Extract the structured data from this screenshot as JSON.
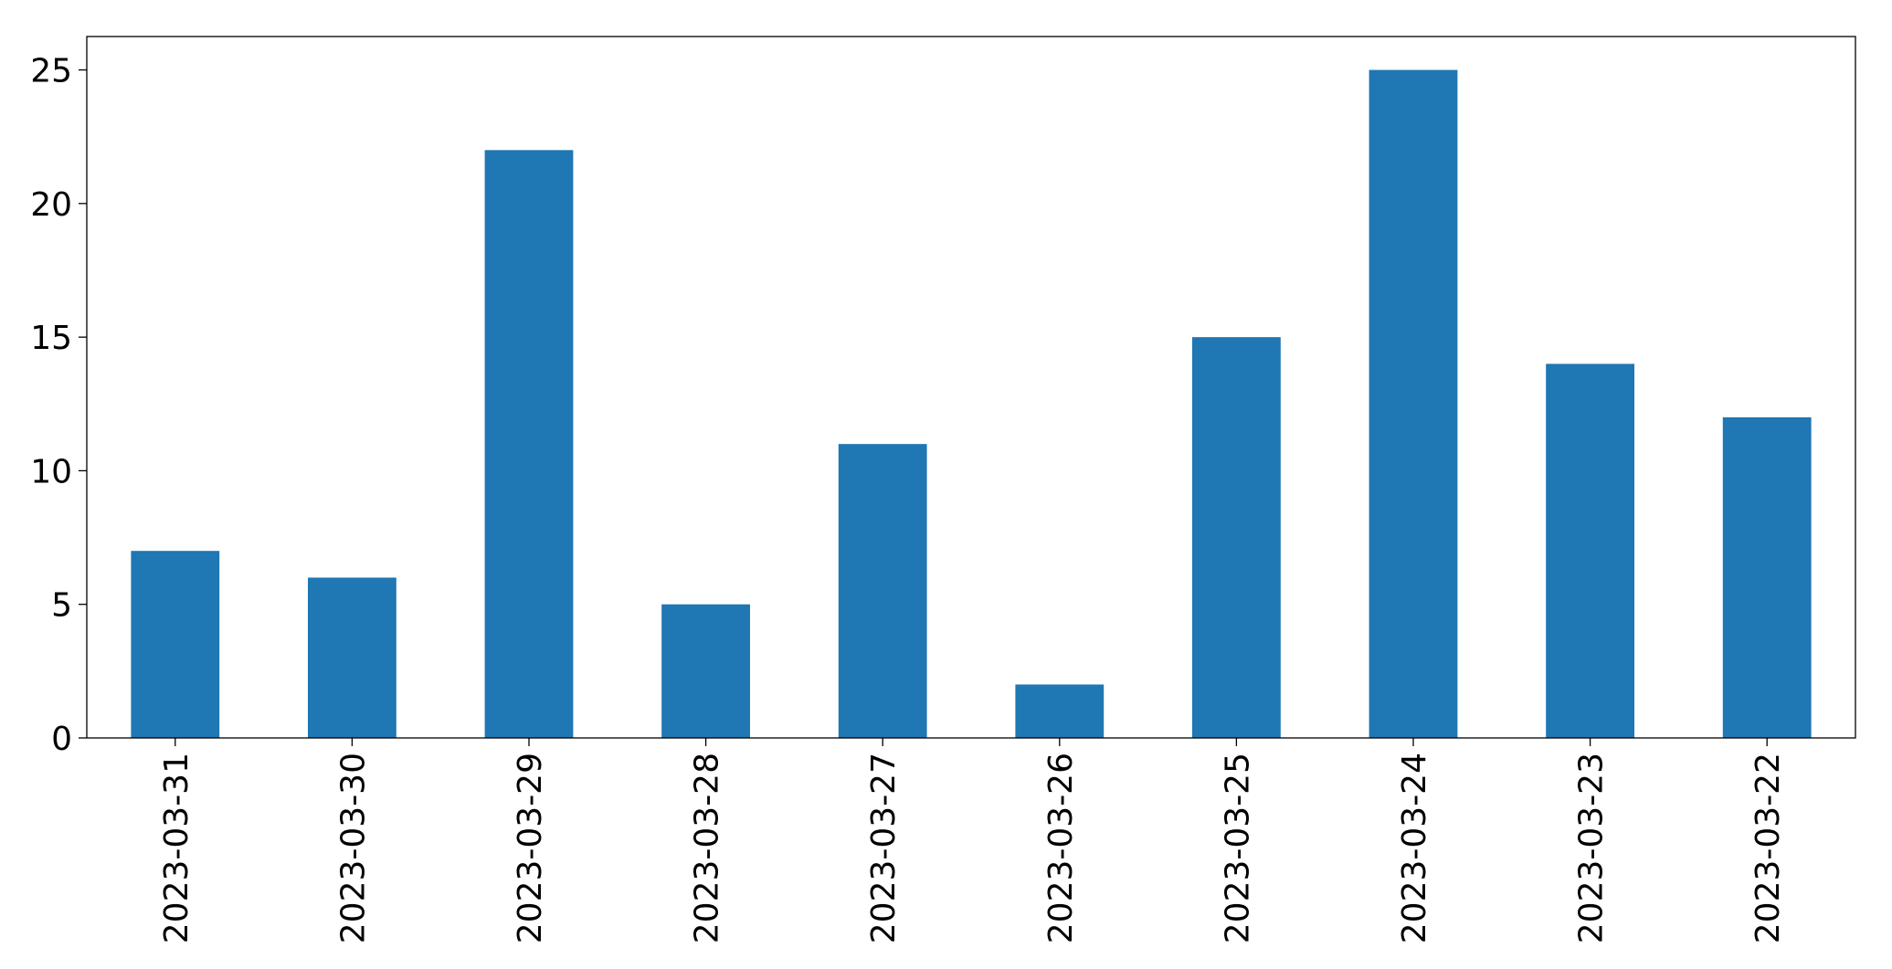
{
  "chart_data": {
    "type": "bar",
    "categories": [
      "2023-03-31",
      "2023-03-30",
      "2023-03-29",
      "2023-03-28",
      "2023-03-27",
      "2023-03-26",
      "2023-03-25",
      "2023-03-24",
      "2023-03-23",
      "2023-03-22"
    ],
    "values": [
      7,
      6,
      22,
      5,
      11,
      2,
      15,
      25,
      14,
      12
    ],
    "color": "#1f77b4",
    "ylim": [
      0,
      26.25
    ],
    "yticks": [
      0,
      5,
      10,
      15,
      20,
      25
    ],
    "grid": false
  }
}
